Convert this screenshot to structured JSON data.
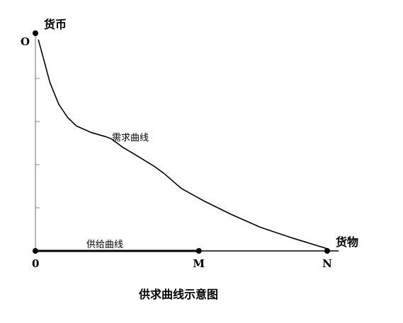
{
  "chart_data": {
    "type": "line",
    "title": "供求曲线示意图",
    "xlabel": "货物",
    "ylabel": "货币",
    "origin_label": "0",
    "y_top_label": "O",
    "x_points": [
      {
        "label": "M",
        "x": 0.56
      },
      {
        "label": "N",
        "x": 1.0
      }
    ],
    "ylim": [
      0,
      1
    ],
    "xlim": [
      0,
      1
    ],
    "y_ticks": [
      0.2,
      0.4,
      0.6,
      0.8
    ],
    "series": [
      {
        "name": "需求曲线",
        "points": [
          [
            0.01,
            0.98
          ],
          [
            0.03,
            0.88
          ],
          [
            0.05,
            0.78
          ],
          [
            0.08,
            0.68
          ],
          [
            0.11,
            0.62
          ],
          [
            0.14,
            0.58
          ],
          [
            0.19,
            0.55
          ],
          [
            0.24,
            0.53
          ],
          [
            0.26,
            0.52
          ],
          [
            0.3,
            0.48
          ],
          [
            0.35,
            0.44
          ],
          [
            0.41,
            0.39
          ],
          [
            0.44,
            0.36
          ],
          [
            0.5,
            0.29
          ],
          [
            0.58,
            0.23
          ],
          [
            0.67,
            0.17
          ],
          [
            0.77,
            0.11
          ],
          [
            0.88,
            0.06
          ],
          [
            1.0,
            0.01
          ]
        ]
      },
      {
        "name": "供给曲线",
        "points": [
          [
            0.0,
            0.0
          ],
          [
            0.56,
            0.0
          ]
        ]
      }
    ]
  }
}
